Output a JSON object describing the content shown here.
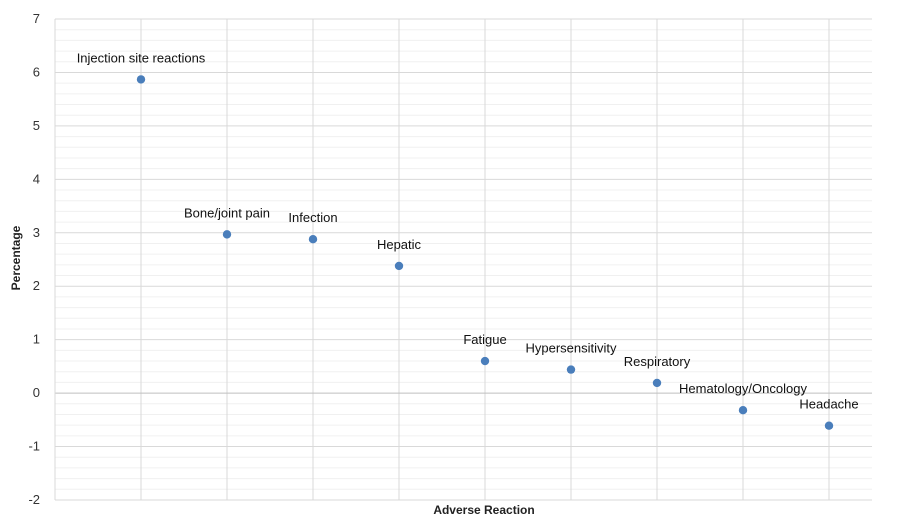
{
  "chart_data": {
    "type": "scatter",
    "title": "",
    "xlabel": "Adverse Reaction",
    "ylabel": "Percentage",
    "ylim": [
      -2,
      7
    ],
    "yticks": [
      "7",
      "6",
      "5",
      "4",
      "3",
      "2",
      "1",
      "0",
      "-1",
      "-2"
    ],
    "grid": "on",
    "colors": {
      "marker": "#4a7ebb",
      "gridline": "#d9d9d9"
    },
    "categories": [
      "Injection site reactions",
      "Bone/joint pain",
      "Infection",
      "Hepatic",
      "Fatigue",
      "Hypersensitivity",
      "Respiratory",
      "Hematology/Oncology",
      "Headache"
    ],
    "values": [
      5.87,
      2.97,
      2.88,
      2.38,
      0.6,
      0.44,
      0.19,
      -0.32,
      -0.61
    ]
  }
}
